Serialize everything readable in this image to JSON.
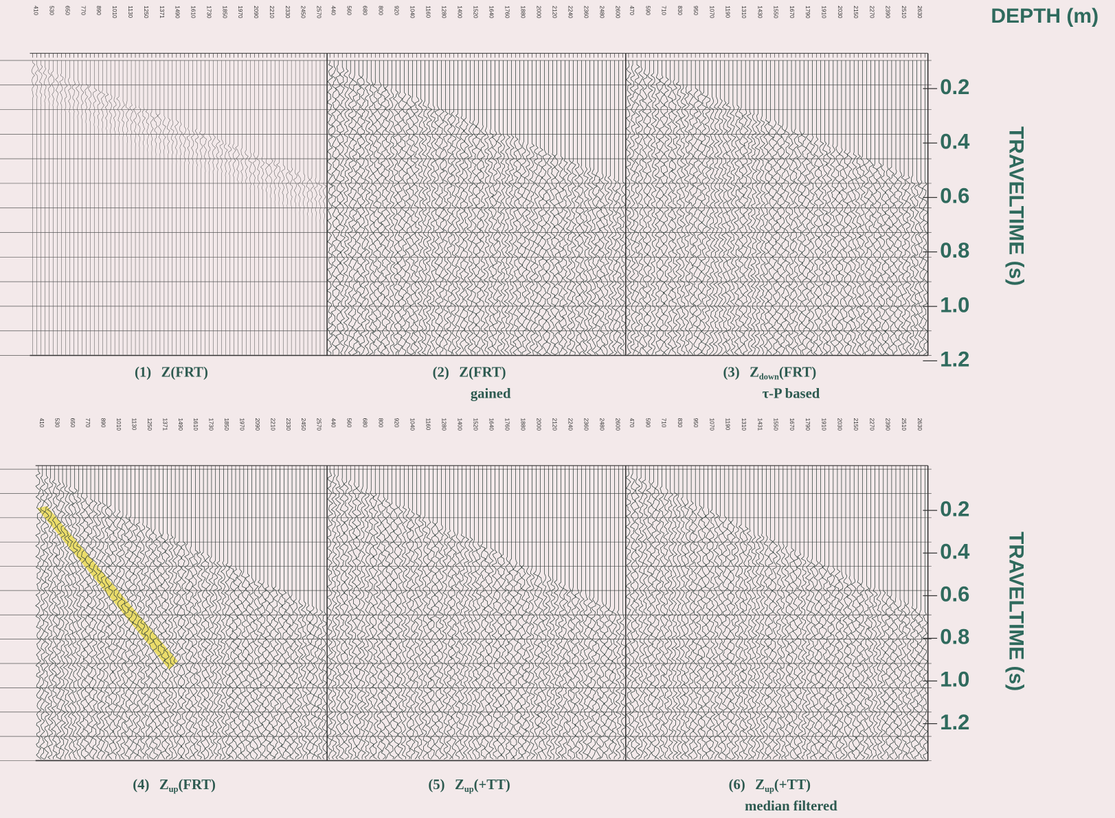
{
  "depth_title": "DEPTH (m)",
  "rows": [
    {
      "time_label": "TRAVELTIME (s)",
      "time_ticks": [
        0.2,
        0.4,
        0.6,
        0.8,
        {
          "value": 1.0,
          "label": "1.0"
        },
        1.2
      ],
      "panels": [
        {
          "depths": [
            410,
            530,
            650,
            770,
            890,
            1010,
            1130,
            1250,
            1371,
            1490,
            1610,
            1730,
            1850,
            1970,
            2090,
            2210,
            2330,
            2450,
            2570
          ],
          "caption": {
            "num": "(1)",
            "main": "Z(FRT)"
          }
        },
        {
          "depths": [
            440,
            560,
            680,
            800,
            920,
            1040,
            1160,
            1280,
            1400,
            1520,
            1640,
            1760,
            1880,
            2000,
            2120,
            2240,
            2360,
            2480,
            2600
          ],
          "caption": {
            "num": "(2)",
            "main": "Z(FRT)",
            "line2": "gained"
          }
        },
        {
          "depths": [
            470,
            590,
            710,
            830,
            950,
            1070,
            1190,
            1310,
            1430,
            1550,
            1670,
            1790,
            1910,
            2030,
            2150,
            2270,
            2390,
            2510,
            2630
          ],
          "caption": {
            "num": "(3)",
            "main": "Z",
            "sub": "down",
            "rest": "(FRT)",
            "line2": "τ-P based"
          }
        }
      ]
    },
    {
      "time_label": "TRAVELTIME (s)",
      "time_ticks": [
        0.2,
        0.4,
        0.6,
        0.8,
        {
          "value": 1.0,
          "label": "1.0"
        },
        1.2
      ],
      "panels": [
        {
          "depths": [
            410,
            530,
            650,
            770,
            890,
            1010,
            1130,
            1250,
            1371,
            1490,
            1610,
            1730,
            1850,
            1970,
            2090,
            2210,
            2330,
            2450,
            2570
          ],
          "caption": {
            "num": "(4)",
            "main": "Z",
            "sub": "up",
            "rest": "(FRT)"
          }
        },
        {
          "depths": [
            440,
            560,
            680,
            800,
            920,
            1040,
            1160,
            1280,
            1400,
            1520,
            1640,
            1760,
            1880,
            2000,
            2120,
            2240,
            2360,
            2480,
            2600
          ],
          "caption": {
            "num": "(5)",
            "main": "Z",
            "sub": "up",
            "rest": "(+TT)"
          }
        },
        {
          "depths": [
            470,
            590,
            710,
            830,
            950,
            1070,
            1190,
            1310,
            1431,
            1550,
            1670,
            1790,
            1910,
            2030,
            2150,
            2270,
            2390,
            2510,
            2630
          ],
          "caption": {
            "num": "(6)",
            "main": "Z",
            "sub": "up",
            "rest": "(+TT)",
            "line2": "median filtered"
          }
        }
      ]
    }
  ]
}
